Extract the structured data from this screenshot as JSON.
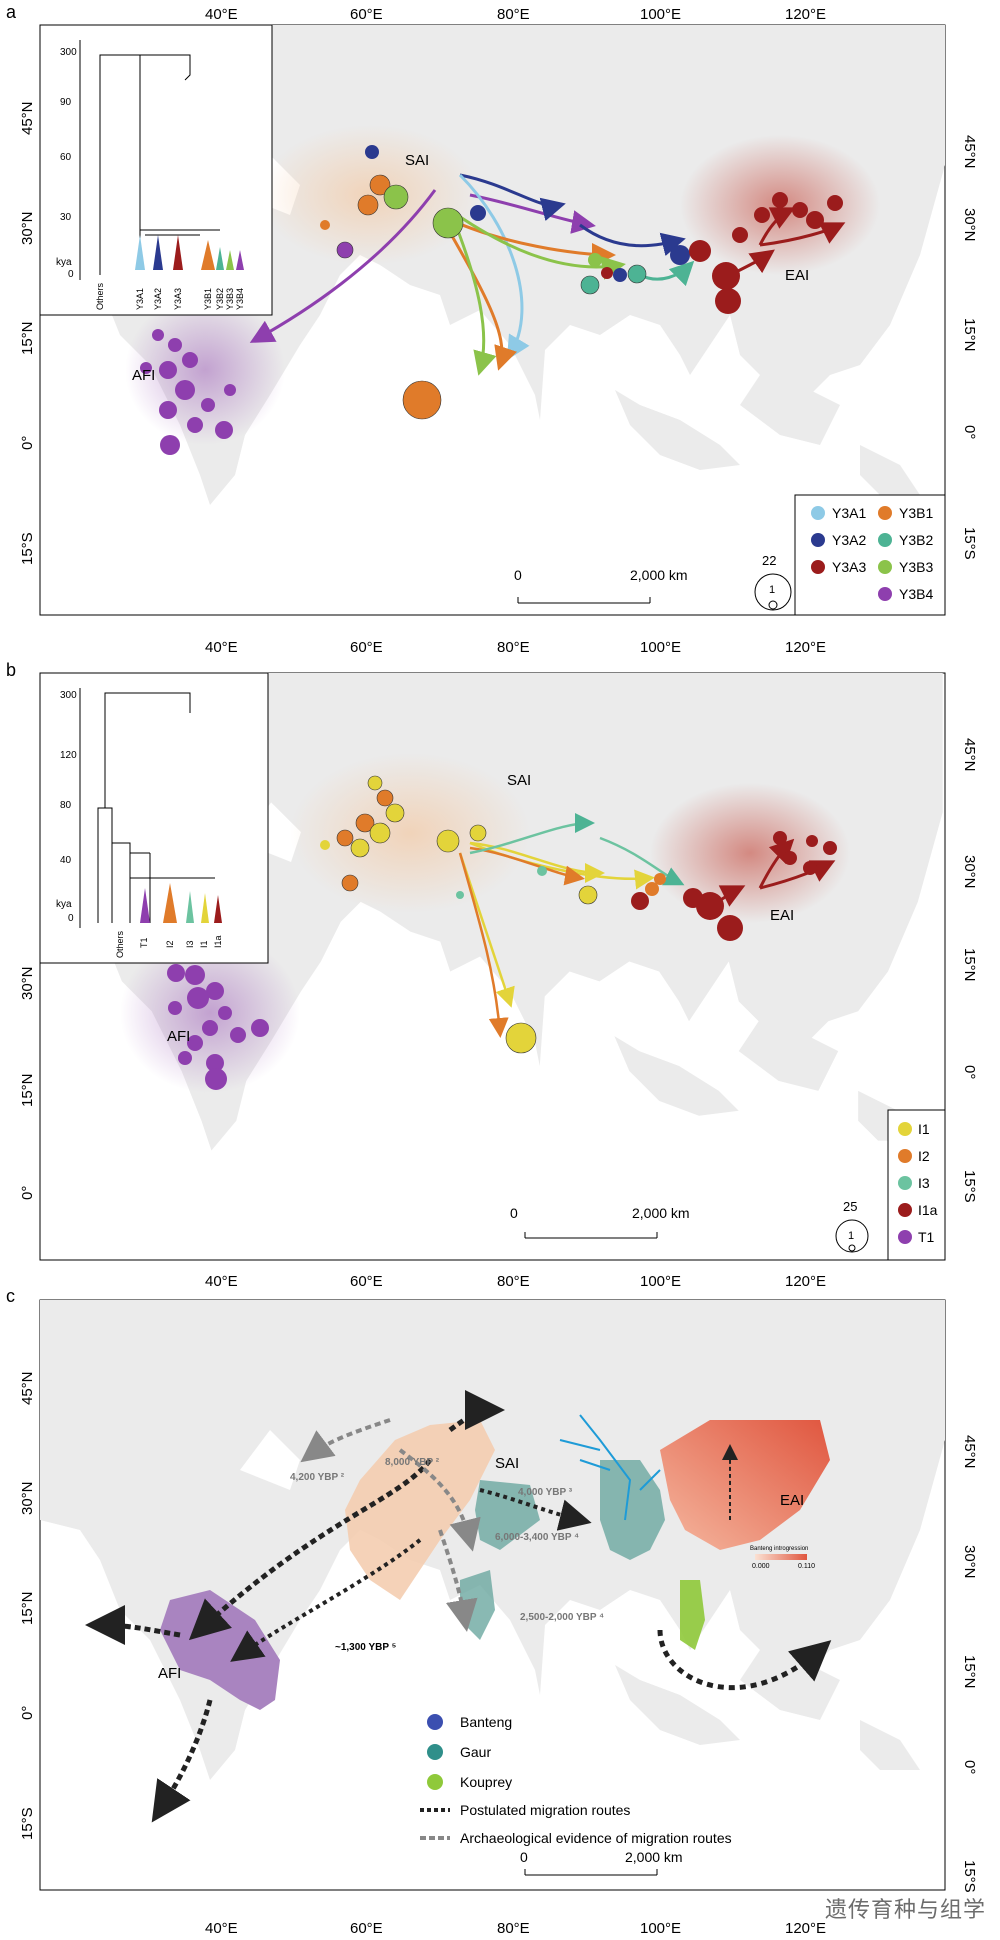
{
  "panels": {
    "a": {
      "letter": "a",
      "region_labels": {
        "sai": "SAI",
        "eai": "EAI",
        "afi": "AFI"
      },
      "tree_ticks": [
        "300",
        "90",
        "60",
        "30",
        "0"
      ],
      "tree_unit": "kya",
      "tree_leaves": [
        "Others",
        "Y3A1",
        "Y3A2",
        "Y3A3",
        "Y3B1",
        "Y3B2",
        "Y3B3",
        "Y3B4"
      ],
      "legend": [
        {
          "label": "Y3A1",
          "color": "#8ecae6"
        },
        {
          "label": "Y3B1",
          "color": "#e07b2a"
        },
        {
          "label": "Y3A2",
          "color": "#2b3a8f"
        },
        {
          "label": "Y3B2",
          "color": "#4db394"
        },
        {
          "label": "Y3A3",
          "color": "#9b1c1c"
        },
        {
          "label": "Y3B3",
          "color": "#8bc34a"
        },
        {
          "label": "Y3B4",
          "color": "#8e3fae"
        }
      ],
      "scale_bar": {
        "start": "0",
        "end": "2,000  km"
      },
      "size_legend": {
        "max": "22",
        "min": "1"
      }
    },
    "b": {
      "letter": "b",
      "region_labels": {
        "sai": "SAI",
        "eai": "EAI",
        "afi": "AFI"
      },
      "tree_ticks": [
        "300",
        "120",
        "80",
        "40",
        "0"
      ],
      "tree_unit": "kya",
      "tree_leaves": [
        "Others",
        "T1",
        "I2",
        "I3",
        "I1",
        "I1a"
      ],
      "legend": [
        {
          "label": "I1",
          "color": "#e3d43a"
        },
        {
          "label": "I2",
          "color": "#e07b2a"
        },
        {
          "label": "I3",
          "color": "#6cc3a0"
        },
        {
          "label": "I1a",
          "color": "#9b1c1c"
        },
        {
          "label": "T1",
          "color": "#8e3fae"
        }
      ],
      "scale_bar": {
        "start": "0",
        "end": "2,000  km"
      },
      "size_legend": {
        "max": "25",
        "min": "1"
      }
    },
    "c": {
      "letter": "c",
      "region_labels": {
        "sai": "SAI",
        "eai": "EAI",
        "afi": "AFI"
      },
      "dates": [
        "4,200 YBP ²",
        "8,000 YBP ²",
        "4,000 YBP ³",
        "6,000-3,400 YBP ⁴",
        "2,500-2,000 YBP ⁴",
        "~1,300 YBP ⁵"
      ],
      "introgression": {
        "title": "Banteng introgression",
        "min": "0.000",
        "max": "0.110"
      },
      "legend": [
        {
          "label": "Banteng",
          "color": "#3b4fb0"
        },
        {
          "label": "Gaur",
          "color": "#2f8f8a"
        },
        {
          "label": "Kouprey",
          "color": "#8fc93a"
        }
      ],
      "line_legend": [
        "Postulated migration routes",
        "Archaeological evidence of migration routes"
      ],
      "scale_bar": {
        "start": "0",
        "end": "2,000  km"
      }
    }
  },
  "axes": {
    "lon_labels": [
      "40°E",
      "60°E",
      "80°E",
      "100°E",
      "120°E"
    ],
    "lat_labels_ab": [
      "45°N",
      "30°N",
      "15°N",
      "0°",
      "15°S"
    ],
    "lat_labels_c": [
      "45°N",
      "30°N",
      "15°N",
      "0°",
      "15°S"
    ]
  },
  "watermark": "遗传育种与组学"
}
